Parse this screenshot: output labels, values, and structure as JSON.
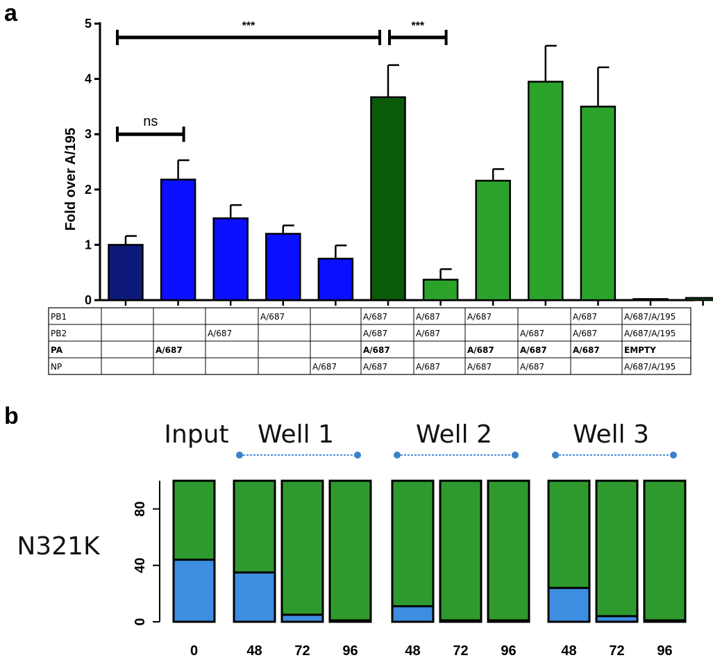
{
  "chart_data": [
    {
      "panel": "a",
      "type": "bar",
      "ylabel": "Fold over A/195",
      "ylim": [
        0,
        5
      ],
      "yticks": [
        "0",
        "1",
        "2",
        "3",
        "4",
        "5"
      ],
      "values": [
        1.0,
        2.18,
        1.48,
        1.2,
        0.75,
        3.67,
        0.37,
        2.16,
        3.95,
        3.5,
        0.02,
        0.04
      ],
      "errors": [
        0.16,
        0.35,
        0.24,
        0.15,
        0.24,
        0.58,
        0.19,
        0.21,
        0.65,
        0.71,
        0.0,
        0.0
      ],
      "colors": [
        "#0d1a7a",
        "#0a10ff",
        "#0a10ff",
        "#0a10ff",
        "#0a10ff",
        "#0b5a0b",
        "#2ba32b",
        "#2ba32b",
        "#2ba32b",
        "#2ba32b",
        "#2ba32b",
        "#2ba32b"
      ],
      "significance": [
        {
          "from": 0,
          "to": 5,
          "label": "***",
          "y": 4.75
        },
        {
          "from": 5,
          "to": 6,
          "label": "***",
          "y": 4.75
        },
        {
          "from": 0,
          "to": 1,
          "label": "ns",
          "y": 3.0
        }
      ],
      "table": {
        "rows": [
          {
            "label": "PB1",
            "bold": false,
            "cells": [
              "",
              "",
              "",
              "A/687",
              "",
              "A/687",
              "A/687",
              "A/687",
              "",
              "A/687",
              "A/687/A/195"
            ]
          },
          {
            "label": "PB2",
            "bold": false,
            "cells": [
              "",
              "",
              "A/687",
              "",
              "",
              "A/687",
              "A/687",
              "",
              "A/687",
              "A/687",
              "A/687/A/195"
            ]
          },
          {
            "label": "PA",
            "bold": true,
            "cells": [
              "",
              "A/687",
              "",
              "",
              "",
              "A/687",
              "",
              "A/687",
              "A/687",
              "A/687",
              "EMPTY"
            ]
          },
          {
            "label": "NP",
            "bold": false,
            "cells": [
              "",
              "",
              "",
              "",
              "A/687",
              "A/687",
              "A/687",
              "A/687",
              "A/687",
              "",
              "A/687/A/195"
            ]
          }
        ]
      }
    },
    {
      "panel": "b",
      "type": "bar",
      "stacked": true,
      "row_label": "N321K",
      "ylim": [
        0,
        100
      ],
      "yticks": [
        "0",
        "40",
        "80"
      ],
      "groups": [
        "Input",
        "Well 1",
        "Well 2",
        "Well 3"
      ],
      "categories": [
        "0",
        "48",
        "72",
        "96",
        "48",
        "72",
        "96",
        "48",
        "72",
        "96"
      ],
      "series": [
        {
          "color": "#3d8ee0",
          "values": [
            44,
            35,
            5,
            1,
            11,
            1,
            1,
            24,
            4,
            1
          ]
        },
        {
          "color": "#2e9a2e",
          "values": [
            56,
            65,
            95,
            99,
            89,
            99,
            99,
            76,
            96,
            99
          ]
        }
      ]
    }
  ],
  "panel_labels": {
    "a": "a",
    "b": "b"
  }
}
